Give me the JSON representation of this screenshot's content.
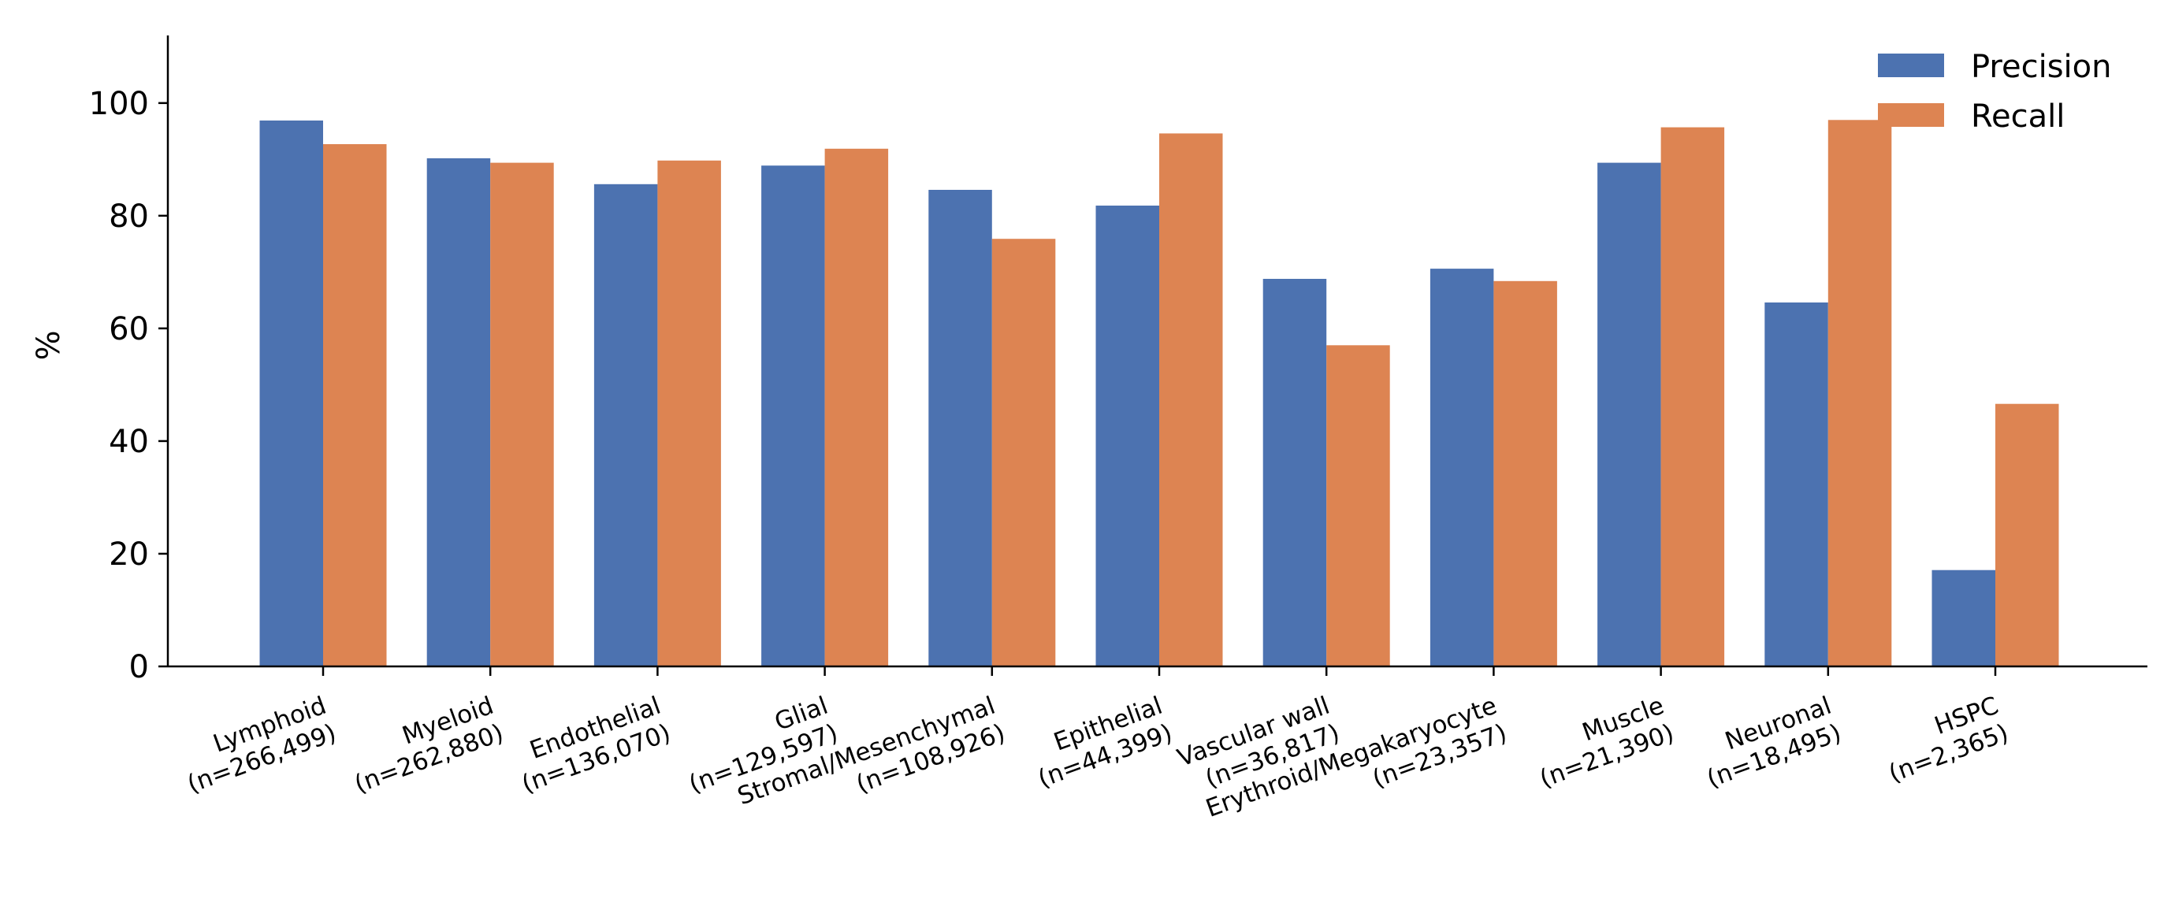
{
  "chart_data": {
    "type": "bar",
    "title": "",
    "xlabel": "",
    "ylabel": "%",
    "ylim": [
      0,
      112
    ],
    "yticks": [
      0,
      20,
      40,
      60,
      80,
      100
    ],
    "grid": false,
    "legend_position": "top-right",
    "categories": [
      "Lymphoid\n(n=266,499)",
      "Myeloid\n(n=262,880)",
      "Endothelial\n(n=136,070)",
      "Glial\n(n=129,597)",
      "Stromal/Mesenchymal\n(n=108,926)",
      "Epithelial\n(n=44,399)",
      "Vascular wall\n(n=36,817)",
      "Erythroid/Megakaryocyte\n(n=23,357)",
      "Muscle\n(n=21,390)",
      "Neuronal\n(n=18,495)",
      "HSPC\n(n=2,365)"
    ],
    "series": [
      {
        "name": "Precision",
        "color": "#4c72b0",
        "values": [
          96.9,
          90.2,
          85.6,
          88.9,
          84.6,
          81.8,
          68.8,
          70.6,
          89.4,
          64.6,
          17.1
        ]
      },
      {
        "name": "Recall",
        "color": "#dd8452",
        "values": [
          92.7,
          89.4,
          89.8,
          91.9,
          75.9,
          94.6,
          57.0,
          68.4,
          95.7,
          97.0,
          46.6
        ]
      }
    ]
  }
}
